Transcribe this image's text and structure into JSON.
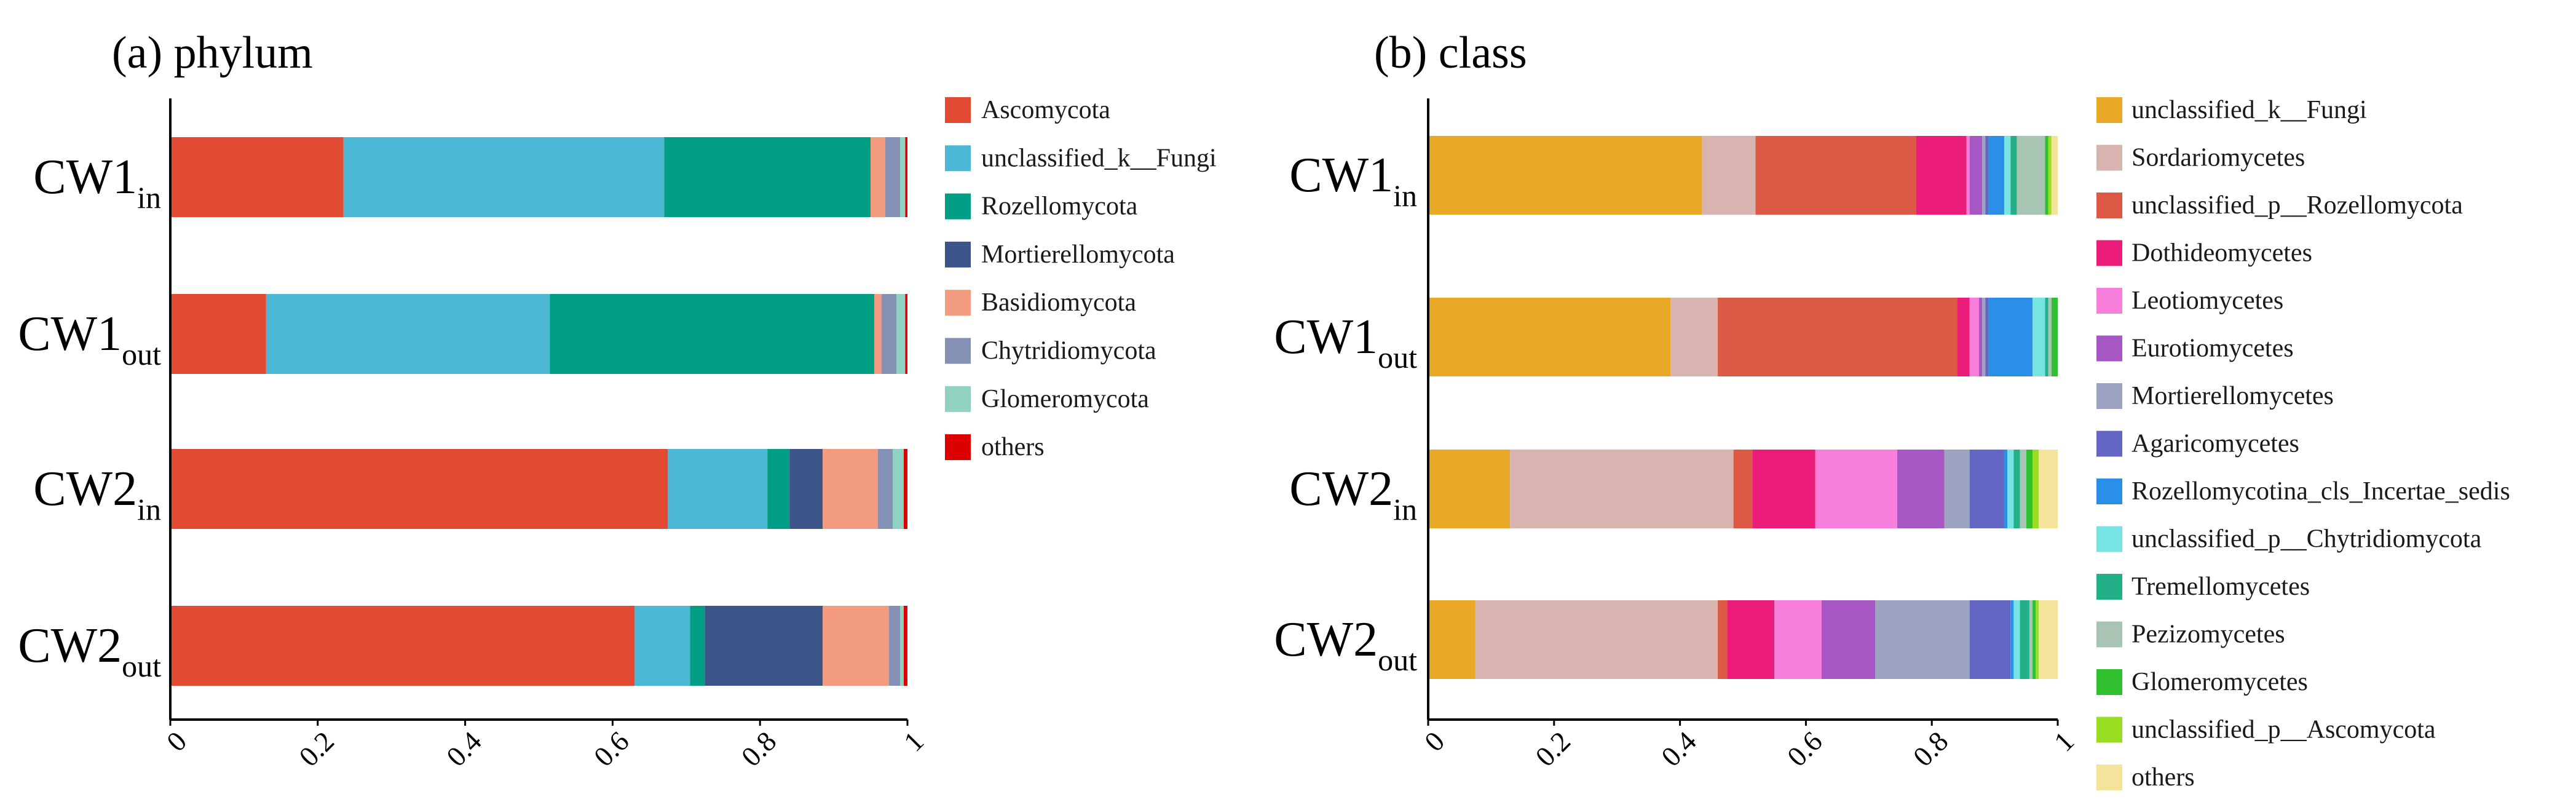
{
  "chart_data": [
    {
      "type": "bar",
      "orientation": "horizontal",
      "stacked": true,
      "title": "(a) phylum",
      "categories": [
        "CW1in",
        "CW1out",
        "CW2in",
        "CW2out"
      ],
      "category_labels": [
        {
          "base": "CW1",
          "sub": "in"
        },
        {
          "base": "CW1",
          "sub": "out"
        },
        {
          "base": "CW2",
          "sub": "in"
        },
        {
          "base": "CW2",
          "sub": "out"
        }
      ],
      "xlim": [
        0,
        1
      ],
      "xticks": [
        "0",
        "0.2",
        "0.4",
        "0.6",
        "0.8",
        "1"
      ],
      "legend_position": "right",
      "series": [
        {
          "name": "Ascomycota",
          "color": "#e34a33",
          "values": [
            0.235,
            0.13,
            0.675,
            0.63
          ]
        },
        {
          "name": "unclassified_k__Fungi",
          "color": "#4db8d6",
          "values": [
            0.435,
            0.385,
            0.135,
            0.075
          ]
        },
        {
          "name": "Rozellomycota",
          "color": "#009e84",
          "values": [
            0.28,
            0.44,
            0.03,
            0.02
          ]
        },
        {
          "name": "Mortierellomycota",
          "color": "#3c5488",
          "values": [
            0.0,
            0.0,
            0.045,
            0.16
          ]
        },
        {
          "name": "Basidiomycota",
          "color": "#f39b7f",
          "values": [
            0.02,
            0.01,
            0.075,
            0.09
          ]
        },
        {
          "name": "Chytridiomycota",
          "color": "#8491b4",
          "values": [
            0.02,
            0.02,
            0.02,
            0.015
          ]
        },
        {
          "name": "Glomeromycota",
          "color": "#91d1c2",
          "values": [
            0.007,
            0.012,
            0.015,
            0.005
          ]
        },
        {
          "name": "others",
          "color": "#dc0000",
          "values": [
            0.003,
            0.003,
            0.005,
            0.005
          ]
        }
      ]
    },
    {
      "type": "bar",
      "orientation": "horizontal",
      "stacked": true,
      "title": "(b) class",
      "categories": [
        "CW1in",
        "CW1out",
        "CW2in",
        "CW2out"
      ],
      "category_labels": [
        {
          "base": "CW1",
          "sub": "in"
        },
        {
          "base": "CW1",
          "sub": "out"
        },
        {
          "base": "CW2",
          "sub": "in"
        },
        {
          "base": "CW2",
          "sub": "out"
        }
      ],
      "xlim": [
        0,
        1
      ],
      "xticks": [
        "0",
        "0.2",
        "0.4",
        "0.6",
        "0.8",
        "1"
      ],
      "legend_position": "right",
      "series": [
        {
          "name": "unclassified_k__Fungi",
          "color": "#e9a825",
          "values": [
            0.435,
            0.385,
            0.13,
            0.075
          ]
        },
        {
          "name": "Sordariomycetes",
          "color": "#d8b4b0",
          "values": [
            0.085,
            0.075,
            0.355,
            0.385
          ]
        },
        {
          "name": "unclassified_p__Rozellomycota",
          "color": "#dc5a45",
          "values": [
            0.255,
            0.38,
            0.03,
            0.015
          ]
        },
        {
          "name": "Dothideomycetes",
          "color": "#ec1c7a",
          "values": [
            0.08,
            0.02,
            0.1,
            0.075
          ]
        },
        {
          "name": "Leotiomycetes",
          "color": "#f77fdb",
          "values": [
            0.005,
            0.015,
            0.13,
            0.075
          ]
        },
        {
          "name": "Eurotiomycetes",
          "color": "#a757c3",
          "values": [
            0.02,
            0.005,
            0.075,
            0.085
          ]
        },
        {
          "name": "Mortierellomycetes",
          "color": "#9fa3c2",
          "values": [
            0.005,
            0.005,
            0.04,
            0.15
          ]
        },
        {
          "name": "Agaricomycetes",
          "color": "#6367c3",
          "values": [
            0.005,
            0.005,
            0.055,
            0.065
          ]
        },
        {
          "name": "Rozellomycotina_cls_Incertae_sedis",
          "color": "#2b8fe8",
          "values": [
            0.025,
            0.07,
            0.005,
            0.005
          ]
        },
        {
          "name": "unclassified_p__Chytridiomycota",
          "color": "#77e3e3",
          "values": [
            0.01,
            0.02,
            0.01,
            0.01
          ]
        },
        {
          "name": "Tremellomycetes",
          "color": "#23b088",
          "values": [
            0.01,
            0.005,
            0.01,
            0.015
          ]
        },
        {
          "name": "Pezizomycetes",
          "color": "#a8c5b4",
          "values": [
            0.045,
            0.005,
            0.01,
            0.005
          ]
        },
        {
          "name": "Glomeromycetes",
          "color": "#2fbf2f",
          "values": [
            0.005,
            0.01,
            0.01,
            0.005
          ]
        },
        {
          "name": "unclassified_p__Ascomycota",
          "color": "#99dd22",
          "values": [
            0.005,
            0.0,
            0.01,
            0.005
          ]
        },
        {
          "name": "others",
          "color": "#f3e39b",
          "values": [
            0.01,
            0.0,
            0.03,
            0.03
          ]
        }
      ]
    }
  ]
}
